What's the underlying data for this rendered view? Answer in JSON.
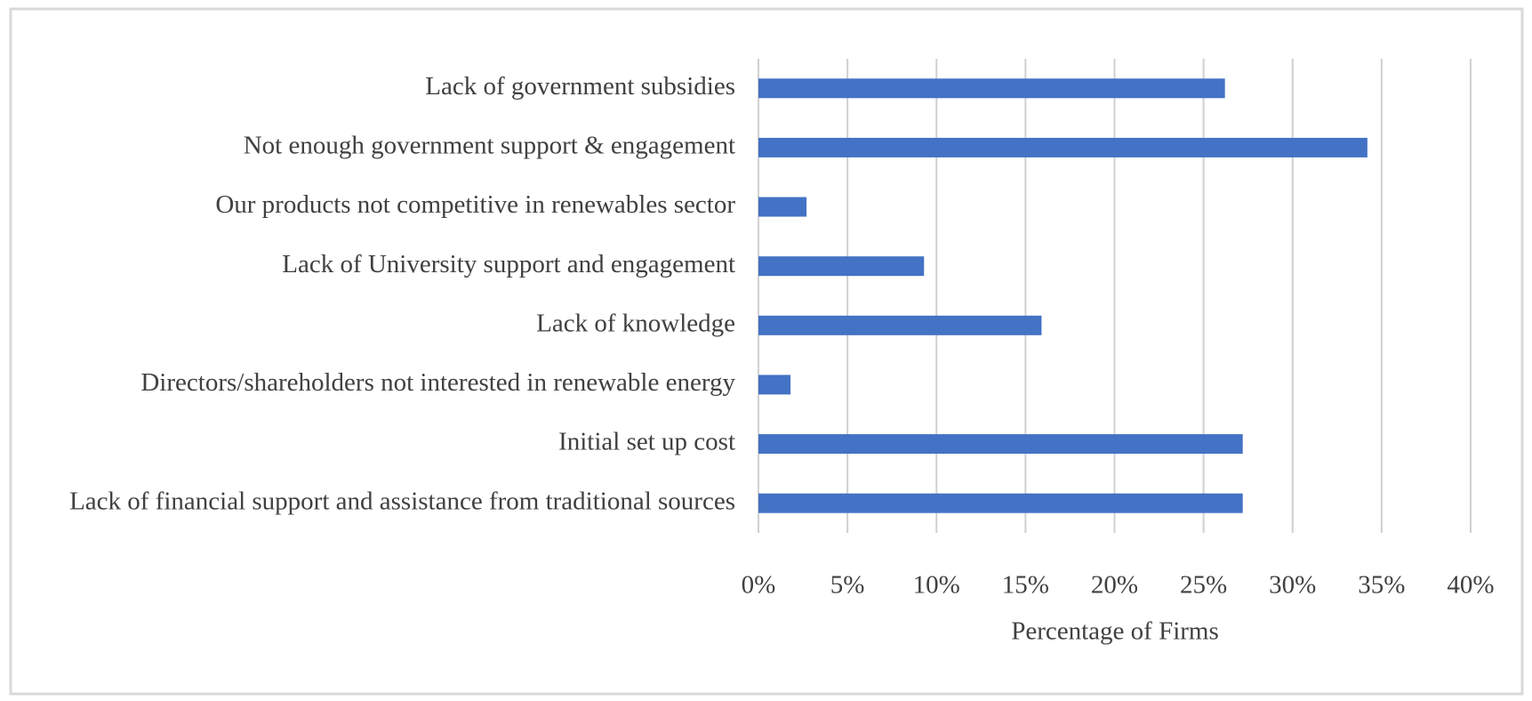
{
  "chart_data": {
    "type": "bar",
    "orientation": "horizontal",
    "categories": [
      "Lack of government subsidies",
      "Not enough government support & engagement",
      "Our products not competitive in renewables sector",
      "Lack of University support and engagement",
      "Lack of knowledge",
      "Directors/shareholders not interested in renewable energy",
      "Initial set up cost",
      "Lack of financial support and assistance from traditional sources"
    ],
    "values": [
      26.2,
      34.2,
      2.7,
      9.3,
      15.9,
      1.8,
      27.2,
      27.2
    ],
    "color": "#4472c4",
    "xlim": [
      0,
      40
    ],
    "xticks": [
      {
        "value": 0,
        "label": "0%"
      },
      {
        "value": 5,
        "label": "5%"
      },
      {
        "value": 10,
        "label": "10%"
      },
      {
        "value": 15,
        "label": "15%"
      },
      {
        "value": 20,
        "label": "20%"
      },
      {
        "value": 25,
        "label": "25%"
      },
      {
        "value": 30,
        "label": "30%"
      },
      {
        "value": 35,
        "label": "35%"
      },
      {
        "value": 40,
        "label": "40%"
      }
    ],
    "xlabel": "Percentage of Firms",
    "grid": true
  }
}
